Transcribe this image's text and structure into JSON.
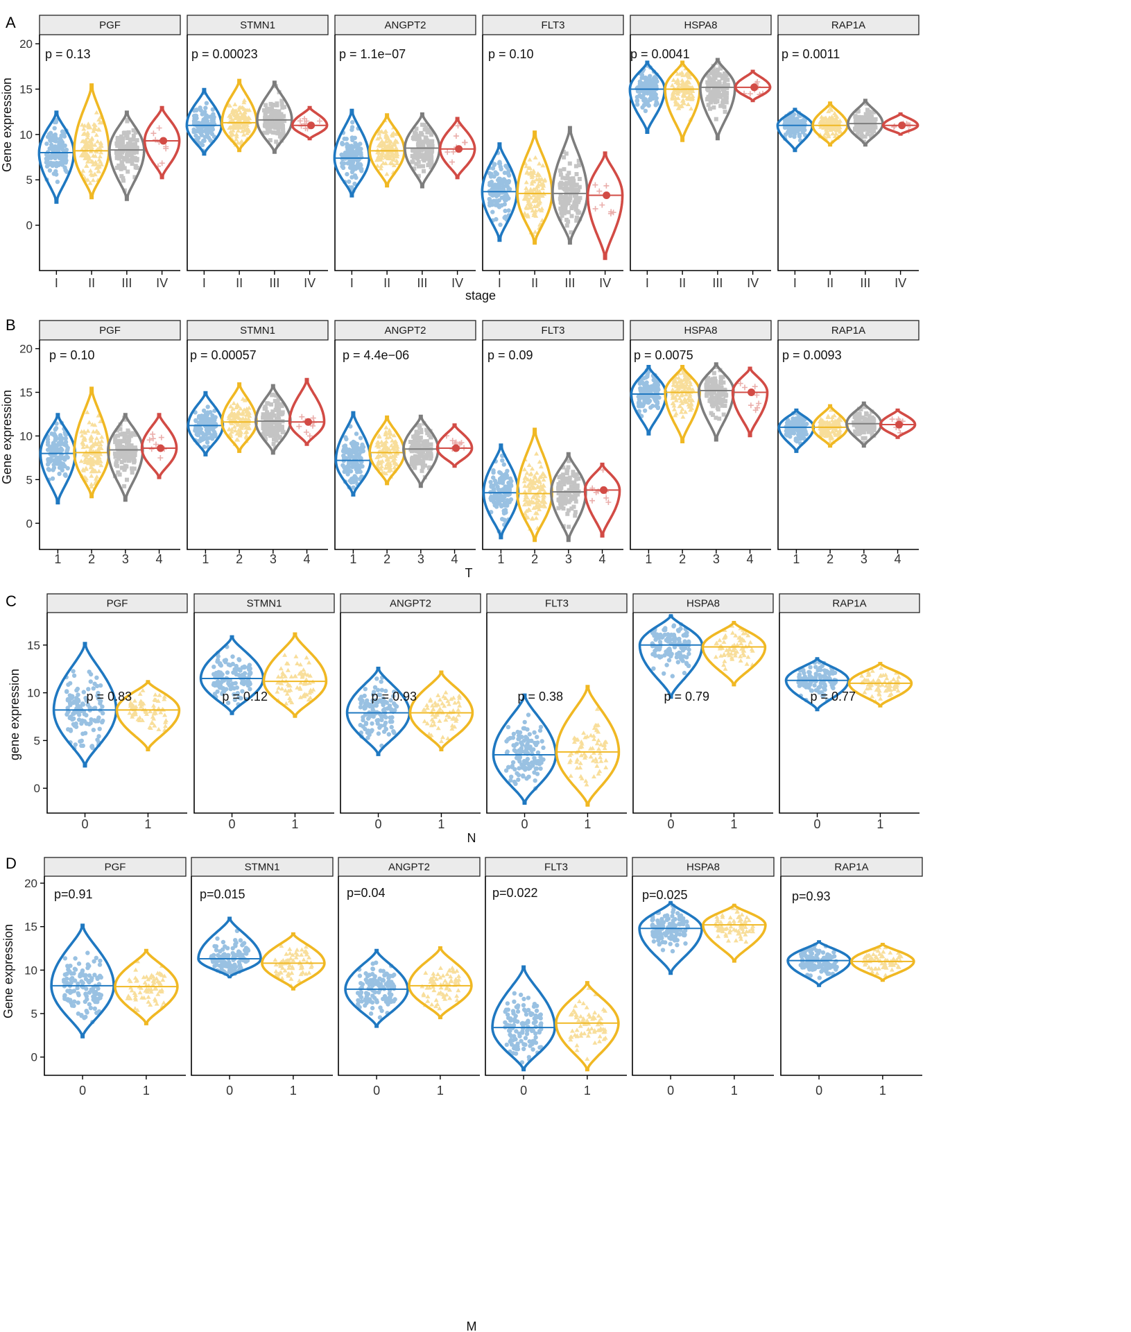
{
  "colors": {
    "blue": "#1f78c1",
    "yellow": "#f0b823",
    "grey": "#7d7d7d",
    "red": "#d24b45",
    "strip_fill": "#ebebeb"
  },
  "point_shapes": [
    "circle",
    "triangle",
    "square",
    "cross"
  ],
  "chart_data": [
    {
      "panel_label": "A",
      "type": "violin",
      "xlabel": "stage",
      "ylabel": "Gene expression",
      "ylim": [
        -5,
        21
      ],
      "yticks": [
        0,
        5,
        10,
        15,
        20
      ],
      "categories": [
        "I",
        "II",
        "III",
        "IV"
      ],
      "genes": [
        {
          "gene": "PGF",
          "p_label": "p = 0.13",
          "groups": [
            {
              "min": 2.5,
              "max": 12.5,
              "median": 8.0
            },
            {
              "min": 3.0,
              "max": 15.5,
              "median": 8.2
            },
            {
              "min": 2.8,
              "max": 12.5,
              "median": 8.3
            },
            {
              "min": 5.2,
              "max": 13.0,
              "median": 9.3
            }
          ]
        },
        {
          "gene": "STMN1",
          "p_label": "p = 0.00023",
          "groups": [
            {
              "min": 7.8,
              "max": 15.0,
              "median": 11.0
            },
            {
              "min": 8.2,
              "max": 16.0,
              "median": 11.3
            },
            {
              "min": 8.0,
              "max": 15.8,
              "median": 11.6
            },
            {
              "min": 9.5,
              "max": 13.0,
              "median": 11.0
            }
          ]
        },
        {
          "gene": "ANGPT2",
          "p_label": "p = 1.1e−07",
          "groups": [
            {
              "min": 3.2,
              "max": 12.7,
              "median": 7.4
            },
            {
              "min": 4.3,
              "max": 12.2,
              "median": 8.2
            },
            {
              "min": 4.2,
              "max": 12.3,
              "median": 8.5
            },
            {
              "min": 5.2,
              "max": 11.8,
              "median": 8.4
            }
          ]
        },
        {
          "gene": "FLT3",
          "p_label": "p = 0.10",
          "groups": [
            {
              "min": -1.7,
              "max": 9.0,
              "median": 3.7
            },
            {
              "min": -2.0,
              "max": 10.3,
              "median": 3.5
            },
            {
              "min": -2.0,
              "max": 10.8,
              "median": 3.5
            },
            {
              "min": -3.7,
              "max": 8.0,
              "median": 3.3
            }
          ]
        },
        {
          "gene": "HSPA8",
          "p_label": "p = 0.0041",
          "groups": [
            {
              "min": 10.2,
              "max": 18.0,
              "median": 15.0
            },
            {
              "min": 9.3,
              "max": 18.0,
              "median": 15.0
            },
            {
              "min": 9.5,
              "max": 18.3,
              "median": 15.2
            },
            {
              "min": 13.7,
              "max": 17.0,
              "median": 15.2
            }
          ]
        },
        {
          "gene": "RAP1A",
          "p_label": "p = 0.0011",
          "groups": [
            {
              "min": 8.2,
              "max": 12.8,
              "median": 11.0
            },
            {
              "min": 8.8,
              "max": 13.5,
              "median": 11.0
            },
            {
              "min": 8.8,
              "max": 13.8,
              "median": 11.2
            },
            {
              "min": 10.0,
              "max": 12.3,
              "median": 11.0
            }
          ]
        }
      ]
    },
    {
      "panel_label": "B",
      "type": "violin",
      "xlabel": "T",
      "ylabel": "Gene expression",
      "ylim": [
        -3,
        21
      ],
      "yticks": [
        0,
        5,
        10,
        15,
        20
      ],
      "categories": [
        "1",
        "2",
        "3",
        "4"
      ],
      "genes": [
        {
          "gene": "PGF",
          "p_label": "p = 0.10",
          "groups": [
            {
              "min": 2.3,
              "max": 12.5,
              "median": 8.0
            },
            {
              "min": 3.0,
              "max": 15.5,
              "median": 8.1
            },
            {
              "min": 2.6,
              "max": 12.5,
              "median": 8.4
            },
            {
              "min": 5.2,
              "max": 12.5,
              "median": 8.6
            }
          ]
        },
        {
          "gene": "STMN1",
          "p_label": "p = 0.00057",
          "groups": [
            {
              "min": 7.8,
              "max": 15.0,
              "median": 11.2
            },
            {
              "min": 8.2,
              "max": 16.0,
              "median": 11.6
            },
            {
              "min": 8.0,
              "max": 15.8,
              "median": 11.7
            },
            {
              "min": 9.0,
              "max": 16.5,
              "median": 11.6
            }
          ]
        },
        {
          "gene": "ANGPT2",
          "p_label": "p = 4.4e−06",
          "groups": [
            {
              "min": 3.2,
              "max": 12.7,
              "median": 7.2
            },
            {
              "min": 4.5,
              "max": 12.2,
              "median": 8.1
            },
            {
              "min": 4.2,
              "max": 12.3,
              "median": 8.5
            },
            {
              "min": 6.5,
              "max": 11.3,
              "median": 8.6
            }
          ]
        },
        {
          "gene": "FLT3",
          "p_label": "p = 0.09",
          "groups": [
            {
              "min": -1.7,
              "max": 9.0,
              "median": 3.5
            },
            {
              "min": -2.0,
              "max": 10.8,
              "median": 3.4
            },
            {
              "min": -2.0,
              "max": 8.0,
              "median": 3.6
            },
            {
              "min": -1.5,
              "max": 6.8,
              "median": 3.8
            }
          ]
        },
        {
          "gene": "HSPA8",
          "p_label": "p = 0.0075",
          "groups": [
            {
              "min": 10.2,
              "max": 18.0,
              "median": 14.8
            },
            {
              "min": 9.3,
              "max": 18.0,
              "median": 15.0
            },
            {
              "min": 9.5,
              "max": 18.3,
              "median": 15.2
            },
            {
              "min": 10.0,
              "max": 17.8,
              "median": 15.0
            }
          ]
        },
        {
          "gene": "RAP1A",
          "p_label": "p = 0.0093",
          "groups": [
            {
              "min": 8.2,
              "max": 13.0,
              "median": 11.0
            },
            {
              "min": 8.8,
              "max": 13.5,
              "median": 11.0
            },
            {
              "min": 8.8,
              "max": 13.8,
              "median": 11.4
            },
            {
              "min": 9.8,
              "max": 13.0,
              "median": 11.3
            }
          ]
        }
      ]
    },
    {
      "panel_label": "C",
      "type": "violin",
      "xlabel": "N",
      "ylabel": "gene expression",
      "ylim": [
        -2.6,
        18.4
      ],
      "yticks": [
        0,
        5,
        10,
        15
      ],
      "categories": [
        "0",
        "1"
      ],
      "genes": [
        {
          "gene": "PGF",
          "p_label": "p = 0.83",
          "groups": [
            {
              "min": 2.3,
              "max": 15.2,
              "median": 8.2
            },
            {
              "min": 4.0,
              "max": 11.2,
              "median": 8.2
            }
          ]
        },
        {
          "gene": "STMN1",
          "p_label": "p = 0.12",
          "groups": [
            {
              "min": 7.8,
              "max": 15.9,
              "median": 11.5
            },
            {
              "min": 7.5,
              "max": 16.2,
              "median": 11.2
            }
          ]
        },
        {
          "gene": "ANGPT2",
          "p_label": "p = 0.93",
          "groups": [
            {
              "min": 3.5,
              "max": 12.6,
              "median": 7.9
            },
            {
              "min": 4.0,
              "max": 12.2,
              "median": 7.9
            }
          ]
        },
        {
          "gene": "FLT3",
          "p_label": "p = 0.38",
          "groups": [
            {
              "min": -1.6,
              "max": 9.8,
              "median": 3.5
            },
            {
              "min": -1.8,
              "max": 10.7,
              "median": 3.8
            }
          ]
        },
        {
          "gene": "HSPA8",
          "p_label": "p = 0.79",
          "groups": [
            {
              "min": 9.5,
              "max": 18.1,
              "median": 15.0
            },
            {
              "min": 10.8,
              "max": 17.4,
              "median": 14.8
            }
          ]
        },
        {
          "gene": "RAP1A",
          "p_label": "p = 0.77",
          "groups": [
            {
              "min": 8.2,
              "max": 13.6,
              "median": 11.3
            },
            {
              "min": 8.6,
              "max": 13.1,
              "median": 11.0
            }
          ]
        }
      ]
    },
    {
      "panel_label": "D",
      "type": "violin",
      "xlabel": "M",
      "ylabel": "Gene expression",
      "ylim": [
        -2.1,
        20.8
      ],
      "yticks": [
        0,
        5,
        10,
        15,
        20
      ],
      "categories": [
        "0",
        "1"
      ],
      "genes": [
        {
          "gene": "PGF",
          "p_label": "p=0.91",
          "groups": [
            {
              "min": 2.3,
              "max": 15.2,
              "median": 8.2
            },
            {
              "min": 3.8,
              "max": 12.3,
              "median": 8.1
            }
          ]
        },
        {
          "gene": "STMN1",
          "p_label": "p=0.015",
          "groups": [
            {
              "min": 9.2,
              "max": 16.0,
              "median": 11.3
            },
            {
              "min": 7.8,
              "max": 14.2,
              "median": 10.8
            }
          ]
        },
        {
          "gene": "ANGPT2",
          "p_label": "p=0.04",
          "groups": [
            {
              "min": 3.5,
              "max": 12.3,
              "median": 7.8
            },
            {
              "min": 4.5,
              "max": 12.6,
              "median": 8.2
            }
          ]
        },
        {
          "gene": "FLT3",
          "p_label": "p=0.022",
          "groups": [
            {
              "min": -1.5,
              "max": 10.4,
              "median": 3.4
            },
            {
              "min": -1.5,
              "max": 8.6,
              "median": 3.9
            }
          ]
        },
        {
          "gene": "HSPA8",
          "p_label": "p=0.025",
          "groups": [
            {
              "min": 9.6,
              "max": 17.8,
              "median": 14.8
            },
            {
              "min": 11.0,
              "max": 17.5,
              "median": 15.2
            }
          ]
        },
        {
          "gene": "RAP1A",
          "p_label": "p=0.93",
          "groups": [
            {
              "min": 8.2,
              "max": 13.3,
              "median": 11.1
            },
            {
              "min": 8.8,
              "max": 13.0,
              "median": 11.0
            }
          ]
        }
      ]
    }
  ]
}
